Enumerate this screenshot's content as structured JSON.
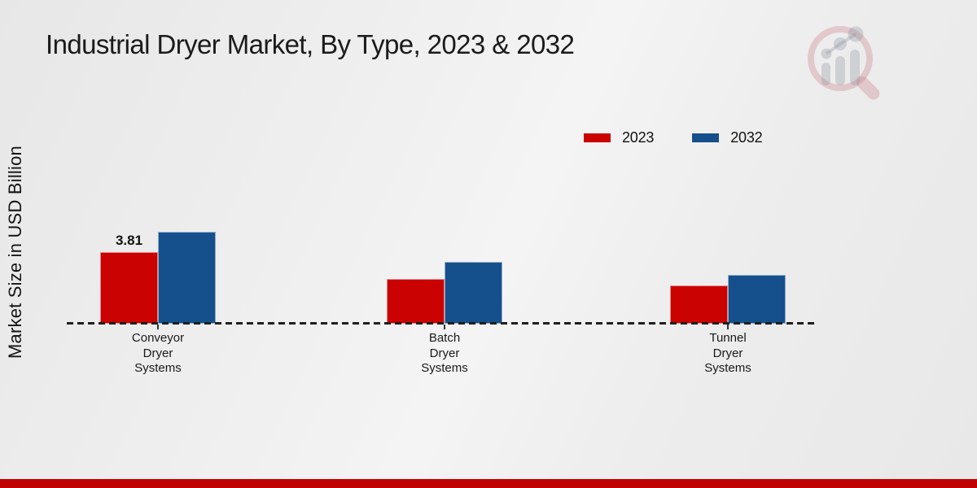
{
  "page": {
    "title": "Industrial Dryer Market, By Type, 2023 & 2032",
    "watermark_icon": "magnifier-bar-chart-logo",
    "bottom_bar_color": "#c00101",
    "background_color": "#ececec"
  },
  "chart_data": {
    "type": "bar",
    "title": "Industrial Dryer Market, By Type, 2023 & 2032",
    "xlabel": "",
    "ylabel": "Market Size in USD Billion",
    "categories": [
      "Conveyor Dryer Systems",
      "Batch Dryer Systems",
      "Tunnel Dryer Systems"
    ],
    "series": [
      {
        "name": "2023",
        "color": "#cb0202",
        "values": [
          3.81,
          2.38,
          2.03
        ]
      },
      {
        "name": "2032",
        "color": "#15508c",
        "values": [
          4.89,
          3.29,
          2.6
        ]
      }
    ],
    "data_labels": [
      {
        "series": "2023",
        "category": "Conveyor Dryer Systems",
        "text": "3.81"
      }
    ],
    "legend_position": "upper-right",
    "grid": false,
    "y_axis_ticks_visible": false,
    "baseline_style": "dashed",
    "baseline_color": "#1f1f1f",
    "ylim": [
      0,
      5.5
    ]
  }
}
